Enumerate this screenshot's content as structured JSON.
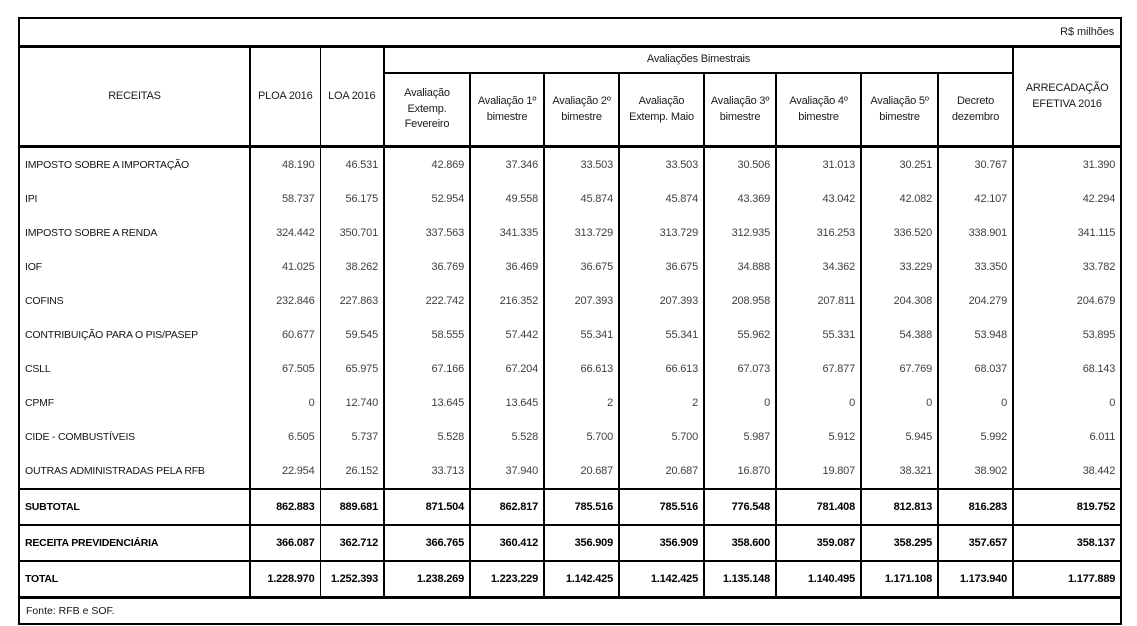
{
  "unit": "R$ milhões",
  "header": {
    "receitas": "RECEITAS",
    "ploa": "PLOA 2016",
    "loa": "LOA 2016",
    "group": "Avaliações Bimestrais",
    "subcolumns": [
      "Avaliação Extemp. Fevereiro",
      "Avaliação 1º bimestre",
      "Avaliação 2º bimestre",
      "Avaliação Extemp. Maio",
      "Avaliação 3º bimestre",
      "Avaliação 4º bimestre",
      "Avaliação 5º bimestre",
      "Decreto dezembro"
    ],
    "arrecadacao": "ARRECADAÇÃO EFETIVA 2016"
  },
  "rows": [
    {
      "label": "IMPOSTO SOBRE A IMPORTAÇÃO",
      "values": [
        "48.190",
        "46.531",
        "42.869",
        "37.346",
        "33.503",
        "33.503",
        "30.506",
        "31.013",
        "30.251",
        "30.767",
        "31.390"
      ]
    },
    {
      "label": "IPI",
      "values": [
        "58.737",
        "56.175",
        "52.954",
        "49.558",
        "45.874",
        "45.874",
        "43.369",
        "43.042",
        "42.082",
        "42.107",
        "42.294"
      ]
    },
    {
      "label": "IMPOSTO SOBRE A RENDA",
      "values": [
        "324.442",
        "350.701",
        "337.563",
        "341.335",
        "313.729",
        "313.729",
        "312.935",
        "316.253",
        "336.520",
        "338.901",
        "341.115"
      ]
    },
    {
      "label": "IOF",
      "values": [
        "41.025",
        "38.262",
        "36.769",
        "36.469",
        "36.675",
        "36.675",
        "34.888",
        "34.362",
        "33.229",
        "33.350",
        "33.782"
      ]
    },
    {
      "label": "COFINS",
      "values": [
        "232.846",
        "227.863",
        "222.742",
        "216.352",
        "207.393",
        "207.393",
        "208.958",
        "207.811",
        "204.308",
        "204.279",
        "204.679"
      ]
    },
    {
      "label": "CONTRIBUIÇÃO PARA O PIS/PASEP",
      "values": [
        "60.677",
        "59.545",
        "58.555",
        "57.442",
        "55.341",
        "55.341",
        "55.962",
        "55.331",
        "54.388",
        "53.948",
        "53.895"
      ]
    },
    {
      "label": "CSLL",
      "values": [
        "67.505",
        "65.975",
        "67.166",
        "67.204",
        "66.613",
        "66.613",
        "67.073",
        "67.877",
        "67.769",
        "68.037",
        "68.143"
      ]
    },
    {
      "label": "CPMF",
      "values": [
        "0",
        "12.740",
        "13.645",
        "13.645",
        "2",
        "2",
        "0",
        "0",
        "0",
        "0",
        "0"
      ]
    },
    {
      "label": "CIDE - COMBUSTÍVEIS",
      "values": [
        "6.505",
        "5.737",
        "5.528",
        "5.528",
        "5.700",
        "5.700",
        "5.987",
        "5.912",
        "5.945",
        "5.992",
        "6.011"
      ]
    },
    {
      "label": "OUTRAS ADMINISTRADAS PELA RFB",
      "values": [
        "22.954",
        "26.152",
        "33.713",
        "37.940",
        "20.687",
        "20.687",
        "16.870",
        "19.807",
        "38.321",
        "38.902",
        "38.442"
      ]
    }
  ],
  "summary_rows": [
    {
      "label": "SUBTOTAL",
      "values": [
        "862.883",
        "889.681",
        "871.504",
        "862.817",
        "785.516",
        "785.516",
        "776.548",
        "781.408",
        "812.813",
        "816.283",
        "819.752"
      ]
    },
    {
      "label": "RECEITA PREVIDENCIÁRIA",
      "values": [
        "366.087",
        "362.712",
        "366.765",
        "360.412",
        "356.909",
        "356.909",
        "358.600",
        "359.087",
        "358.295",
        "357.657",
        "358.137"
      ]
    },
    {
      "label": "TOTAL",
      "values": [
        "1.228.970",
        "1.252.393",
        "1.238.269",
        "1.223.229",
        "1.142.425",
        "1.142.425",
        "1.135.148",
        "1.140.495",
        "1.171.108",
        "1.173.940",
        "1.177.889"
      ]
    }
  ],
  "fonte": "Fonte: RFB e SOF."
}
